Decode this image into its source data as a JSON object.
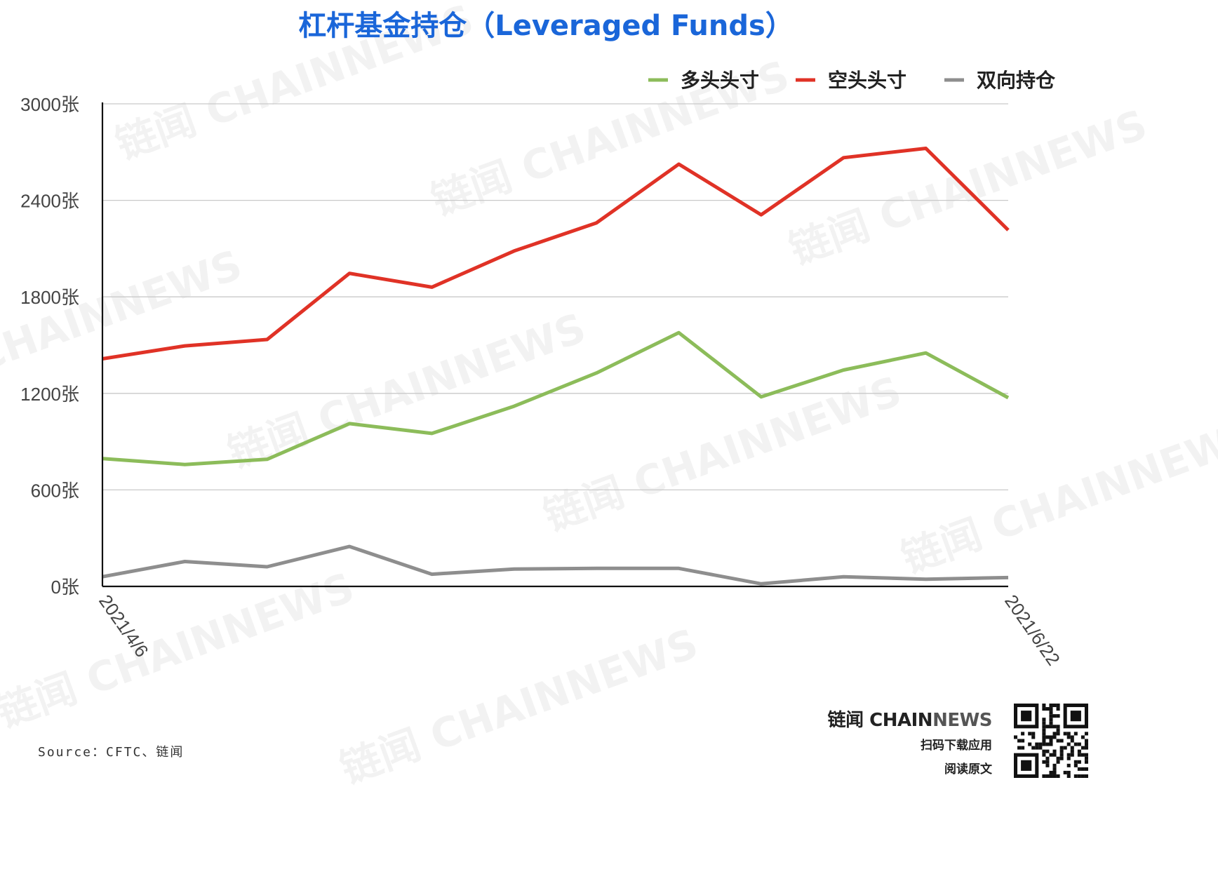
{
  "title": "杠杆基金持仓（Leveraged Funds）",
  "source": "Source：CFTC、链闻",
  "brand": {
    "name_cn": "链闻",
    "name_en_a": "CHAIN",
    "name_en_b": "NEWS",
    "line1": "扫码下载应用",
    "line2": "阅读原文"
  },
  "watermark": "链闻 CHAINNEWS",
  "colors": {
    "title": "#1a66d9",
    "long": "#8cbc5a",
    "short": "#e03226",
    "spread": "#8e8e8e"
  },
  "chart_data": {
    "type": "line",
    "title": "杠杆基金持仓（Leveraged Funds）",
    "x": [
      "2021/4/6",
      "",
      "",
      "",
      "",
      "",
      "",
      "",
      "",
      "",
      "",
      "2021/6/22"
    ],
    "x_tick_labels": [
      "2021/4/6",
      "2021/6/22"
    ],
    "y_ticks": [
      "0张",
      "600张",
      "1200张",
      "1800张",
      "2400张",
      "3000张"
    ],
    "ylim": [
      0,
      3000
    ],
    "grid": true,
    "legend_position": "top-right",
    "series": [
      {
        "name": "多头头寸",
        "color": "#8cbc5a",
        "values": [
          795,
          758,
          790,
          1012,
          951,
          1120,
          1327,
          1577,
          1178,
          1345,
          1451,
          1173
        ]
      },
      {
        "name": "空头头寸",
        "color": "#e03226",
        "values": [
          1415,
          1495,
          1535,
          1946,
          1860,
          2085,
          2260,
          2625,
          2310,
          2665,
          2723,
          2215
        ]
      },
      {
        "name": "双向持仓",
        "color": "#8e8e8e",
        "values": [
          60,
          155,
          122,
          248,
          76,
          108,
          112,
          112,
          16,
          60,
          45,
          55
        ]
      }
    ]
  }
}
